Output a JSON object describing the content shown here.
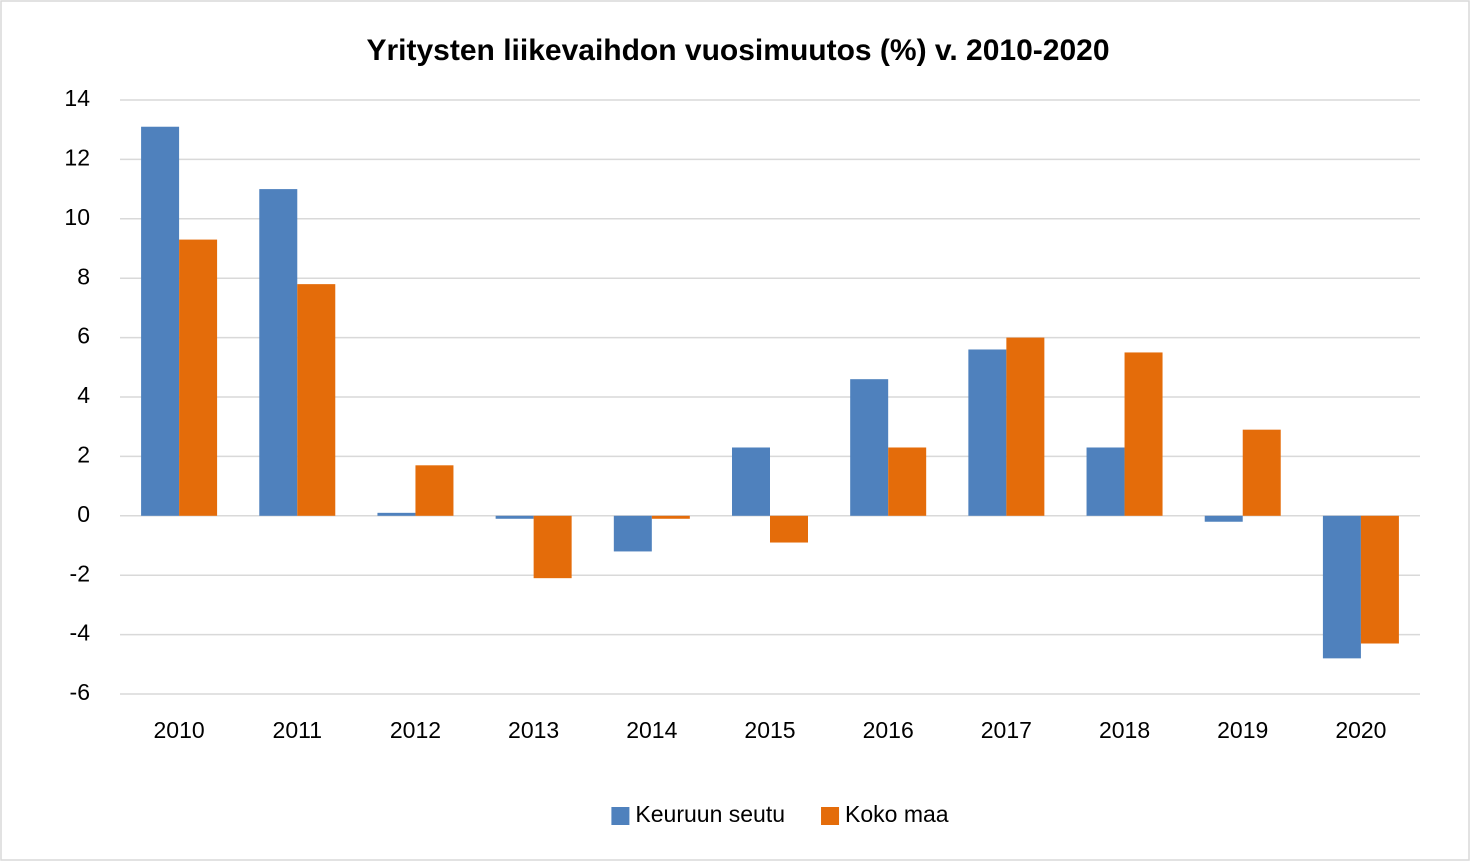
{
  "chart_data": {
    "type": "bar",
    "title": "Yritysten liikevaihdon vuosimuutos (%) v. 2010-2020",
    "categories": [
      "2010",
      "2011",
      "2012",
      "2013",
      "2014",
      "2015",
      "2016",
      "2017",
      "2018",
      "2019",
      "2020"
    ],
    "series": [
      {
        "name": "Keuruun seutu",
        "color": "#4f81bd",
        "values": [
          13.1,
          11.0,
          0.1,
          -0.1,
          -1.2,
          2.3,
          4.6,
          5.6,
          2.3,
          -0.2,
          -4.8
        ]
      },
      {
        "name": "Koko maa",
        "color": "#e46c0a",
        "values": [
          9.3,
          7.8,
          1.7,
          -2.1,
          -0.1,
          -0.9,
          2.3,
          6.0,
          5.5,
          2.9,
          -4.3
        ]
      }
    ],
    "ylim": [
      -6,
      14
    ],
    "yticks": [
      -6,
      -4,
      -2,
      0,
      2,
      4,
      6,
      8,
      10,
      12,
      14
    ],
    "grid": true,
    "legend": "bottom"
  }
}
